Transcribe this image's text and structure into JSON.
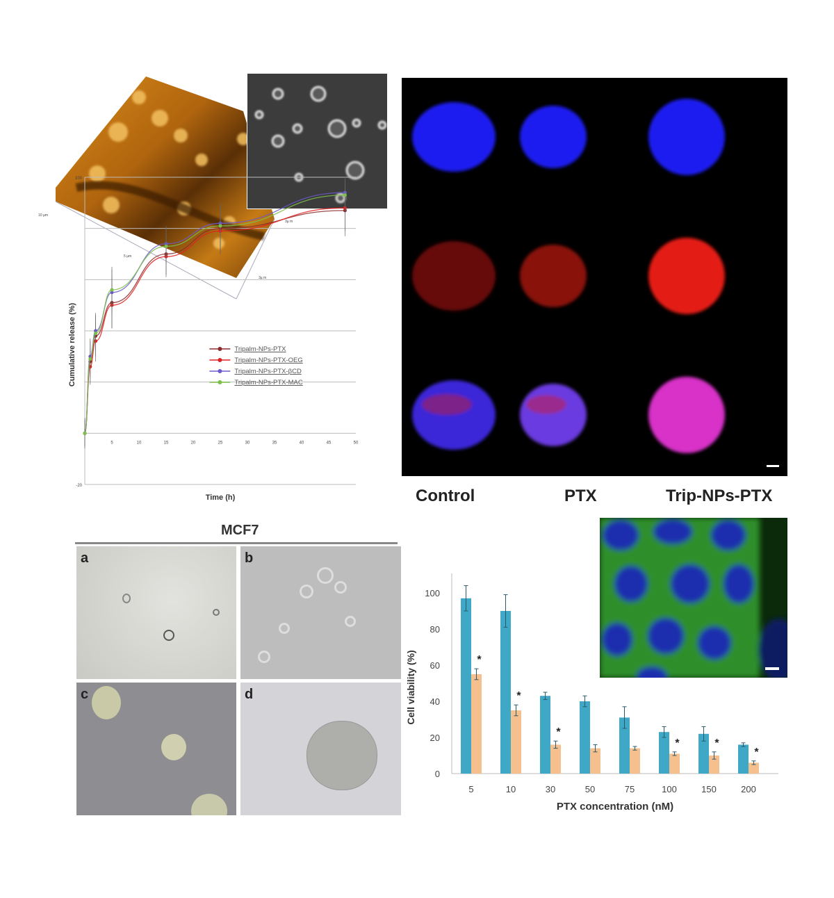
{
  "afm": {
    "axis_labels": [
      "10 µm",
      "5 µm",
      "3µ m",
      "3µ m"
    ]
  },
  "confocal": {
    "columns": [
      "Control",
      "PTX",
      "Trip-NPs-PTX"
    ],
    "channel_colors": {
      "blue": "#1c1cf0",
      "red": "#e41a12",
      "merge": "#d830c8"
    },
    "scale_bar": true
  },
  "mcf7": {
    "title": "MCF7",
    "panels": [
      "a",
      "b",
      "c",
      "d"
    ]
  },
  "chart_data": [
    {
      "type": "line",
      "xlabel": "Time (h)",
      "ylabel": "Cumulative release (%)",
      "xlim": [
        0,
        50
      ],
      "ylim": [
        -20,
        100
      ],
      "xticks": [
        "5",
        "10",
        "15",
        "20",
        "25",
        "30",
        "35",
        "40",
        "45",
        "50"
      ],
      "yticks": [
        "100",
        "-20"
      ],
      "grid": true,
      "legend": "center-right",
      "x": [
        0,
        1,
        2,
        5,
        15,
        25,
        48
      ],
      "series": [
        {
          "name": "Tripalm-NPs-PTX",
          "color": "#8b2a2a",
          "marker": "circle",
          "values": [
            0,
            28,
            38,
            51,
            70,
            80,
            87
          ],
          "error": [
            6,
            8,
            8,
            10,
            8,
            10,
            10
          ]
        },
        {
          "name": "Tripalm-NPs-PTX-OEG",
          "color": "#e02020",
          "marker": "diamond",
          "values": [
            0,
            26,
            36,
            50,
            69,
            79,
            88
          ],
          "error": [
            5,
            7,
            8,
            9,
            8,
            9,
            9
          ]
        },
        {
          "name": "Tripalm-NPs-PTX-βCD",
          "color": "#6a5acd",
          "marker": "x",
          "values": [
            0,
            30,
            40,
            55,
            74,
            82,
            94
          ],
          "error": [
            5,
            7,
            7,
            9,
            7,
            8,
            6
          ]
        },
        {
          "name": "Tripalm-NPs-PTX-MAC",
          "color": "#7cc04a",
          "marker": "triangle",
          "values": [
            0,
            29,
            39,
            56,
            73,
            81,
            93
          ],
          "error": [
            5,
            7,
            7,
            9,
            7,
            8,
            6
          ]
        }
      ]
    },
    {
      "type": "bar",
      "xlabel": "PTX concentration (nM)",
      "ylabel": "Cell viability (%)",
      "ylim": [
        0,
        110
      ],
      "yticks": [
        "0",
        "20",
        "40",
        "60",
        "80",
        "100"
      ],
      "categories": [
        "5",
        "10",
        "30",
        "50",
        "75",
        "100",
        "150",
        "200"
      ],
      "series": [
        {
          "color": "#3ea8c6",
          "values": [
            97,
            90,
            43,
            40,
            31,
            23,
            22,
            16
          ],
          "error": [
            7,
            9,
            2,
            3,
            6,
            3,
            4,
            1
          ]
        },
        {
          "color": "#f6c08e",
          "values": [
            55,
            35,
            16,
            14,
            14,
            11,
            10,
            6
          ],
          "error": [
            3,
            3,
            2,
            2,
            1,
            1,
            2,
            1
          ]
        }
      ],
      "significance": [
        "*",
        "*",
        "*",
        "",
        "",
        "*",
        "*",
        "*"
      ]
    }
  ]
}
